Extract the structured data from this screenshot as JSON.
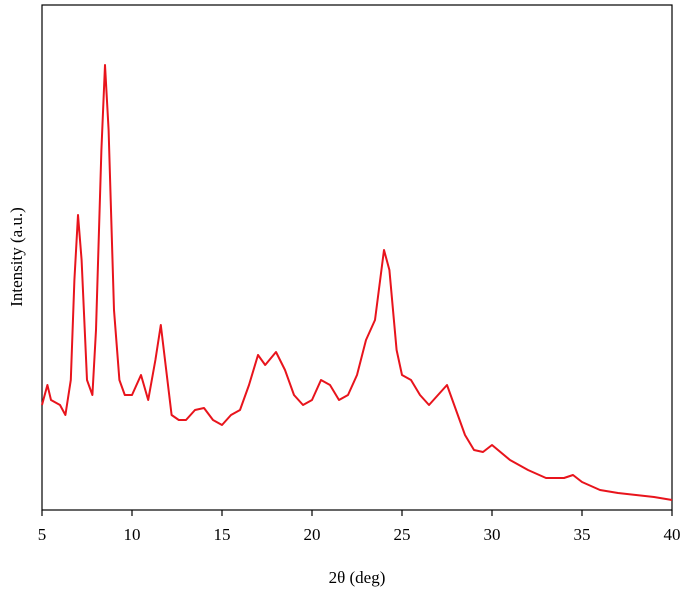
{
  "chart_data": {
    "type": "line",
    "x_label": "2θ (deg)",
    "y_label": "Intensity (a.u.)",
    "x": [
      5.0,
      5.3,
      5.5,
      6.0,
      6.3,
      6.6,
      6.8,
      7.0,
      7.2,
      7.5,
      7.8,
      8.0,
      8.3,
      8.5,
      8.7,
      9.0,
      9.3,
      9.6,
      10.0,
      10.5,
      10.9,
      11.3,
      11.6,
      11.9,
      12.2,
      12.6,
      13.0,
      13.5,
      14.0,
      14.5,
      15.0,
      15.5,
      16.0,
      16.5,
      17.0,
      17.4,
      18.0,
      18.5,
      19.0,
      19.5,
      20.0,
      20.5,
      21.0,
      21.5,
      22.0,
      22.5,
      23.0,
      23.5,
      24.0,
      24.3,
      24.7,
      25.0,
      25.5,
      26.0,
      26.5,
      27.0,
      27.5,
      28.0,
      28.5,
      29.0,
      29.5,
      30.0,
      31.0,
      32.0,
      33.0,
      34.0,
      34.5,
      35.0,
      36.0,
      37.0,
      38.0,
      39.0,
      40.0
    ],
    "series": [
      {
        "color": "#e8141c",
        "values": [
          21,
          25,
          22,
          21,
          19,
          26,
          46,
          59,
          50,
          26,
          23,
          36,
          72,
          89,
          76,
          40,
          26,
          23,
          23,
          27,
          22,
          30,
          37,
          28,
          19,
          18,
          18,
          20,
          20.4,
          18,
          17,
          19,
          20,
          25,
          31,
          29,
          31.6,
          28,
          23,
          21,
          22,
          26,
          25,
          22,
          23,
          27,
          34,
          38,
          52,
          48,
          32,
          27,
          26,
          23,
          21,
          23,
          25,
          20,
          15,
          12,
          11.6,
          13,
          10,
          8,
          6.4,
          6.4,
          7,
          5.6,
          4,
          3.4,
          3,
          2.6,
          2
        ]
      }
    ],
    "xlim": [
      5,
      40
    ],
    "xticks": [
      5,
      10,
      15,
      20,
      25,
      30,
      35,
      40
    ],
    "ylim": [
      0,
      101
    ]
  }
}
